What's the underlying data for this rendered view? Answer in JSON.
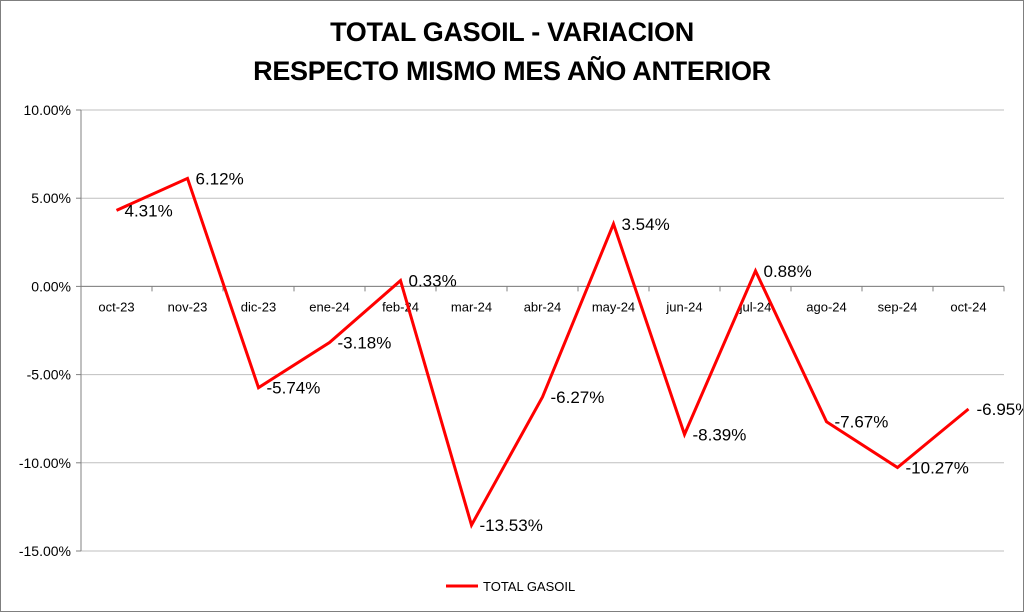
{
  "chart_data": {
    "type": "line",
    "title": "TOTAL GASOIL - VARIACION",
    "subtitle": "RESPECTO MISMO MES AÑO ANTERIOR",
    "categories": [
      "oct-23",
      "nov-23",
      "dic-23",
      "ene-24",
      "feb-24",
      "mar-24",
      "abr-24",
      "may-24",
      "jun-24",
      "jul-24",
      "ago-24",
      "sep-24",
      "oct-24"
    ],
    "series": [
      {
        "name": "TOTAL GASOIL",
        "color": "#ff0000",
        "values": [
          4.31,
          6.12,
          -5.74,
          -3.18,
          0.33,
          -13.53,
          -6.27,
          3.54,
          -8.39,
          0.88,
          -7.67,
          -10.27,
          -6.95
        ],
        "labels": [
          "4.31%",
          "6.12%",
          "-5.74%",
          "-3.18%",
          "0.33%",
          "-13.53%",
          "-6.27%",
          "3.54%",
          "-8.39%",
          "0.88%",
          "-7.67%",
          "-10.27%",
          "-6.95%"
        ]
      }
    ],
    "y_ticks": [
      "10.00%",
      "5.00%",
      "0.00%",
      "-5.00%",
      "-10.00%",
      "-15.00%"
    ],
    "ylim": [
      -15,
      10
    ],
    "grid": true,
    "legend_position": "bottom"
  }
}
